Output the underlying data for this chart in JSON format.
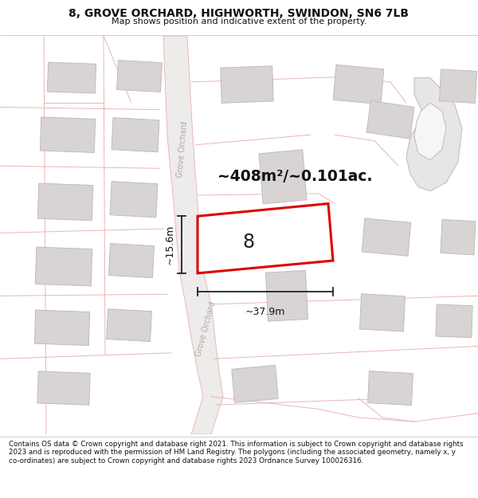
{
  "title_line1": "8, GROVE ORCHARD, HIGHWORTH, SWINDON, SN6 7LB",
  "title_line2": "Map shows position and indicative extent of the property.",
  "copyright_text": "Contains OS data © Crown copyright and database right 2021. This information is subject to Crown copyright and database rights 2023 and is reproduced with the permission of HM Land Registry. The polygons (including the associated geometry, namely x, y co-ordinates) are subject to Crown copyright and database rights 2023 Ordnance Survey 100026316.",
  "area_label": "~408m²/~0.101ac.",
  "dim_width": "~37.9m",
  "dim_height": "~15.6m",
  "property_number": "8",
  "map_bg": "#f7f5f5",
  "road_color": "#e8b0b0",
  "road_fill": "#ece8e8",
  "building_fill": "#d8d4d4",
  "building_edge": "#c0bcbc",
  "property_edge": "#dd0000",
  "property_fill": "#ffffff",
  "dim_line_color": "#222222",
  "title_color": "#111111",
  "text_color": "#111111",
  "road_label_color": "#b0aaaa",
  "cul_de_sac_color": "#c8c0c0"
}
